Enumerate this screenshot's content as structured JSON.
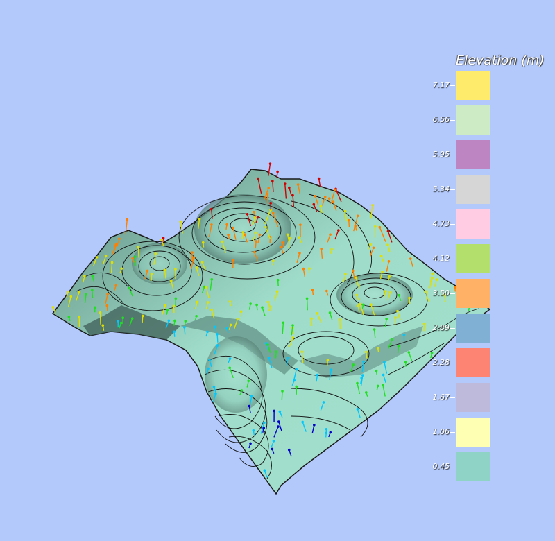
{
  "legend": {
    "title": "Elevation (m)",
    "items": [
      {
        "label": "7.17",
        "color": "#ffeb6b"
      },
      {
        "label": "6.56",
        "color": "#cdebc4"
      },
      {
        "label": "5.95",
        "color": "#bd85c1"
      },
      {
        "label": "5.34",
        "color": "#d6d6d6"
      },
      {
        "label": "4.73",
        "color": "#ffcce4"
      },
      {
        "label": "4.12",
        "color": "#b3e06c"
      },
      {
        "label": "3.50",
        "color": "#ffb266"
      },
      {
        "label": "2.89",
        "color": "#80b0d4"
      },
      {
        "label": "2.28",
        "color": "#fd8473"
      },
      {
        "label": "1.67",
        "color": "#bebadb"
      },
      {
        "label": "1.06",
        "color": "#ffffb3"
      },
      {
        "label": "0.45",
        "color": "#8fd3c6"
      }
    ]
  },
  "surface": {
    "color": "#99d8c6",
    "contour_color": "#111111"
  },
  "glyphs": {
    "colormap": [
      "#0000c8",
      "#00c8ff",
      "#20e020",
      "#e0e000",
      "#ff8000",
      "#d00000"
    ]
  }
}
